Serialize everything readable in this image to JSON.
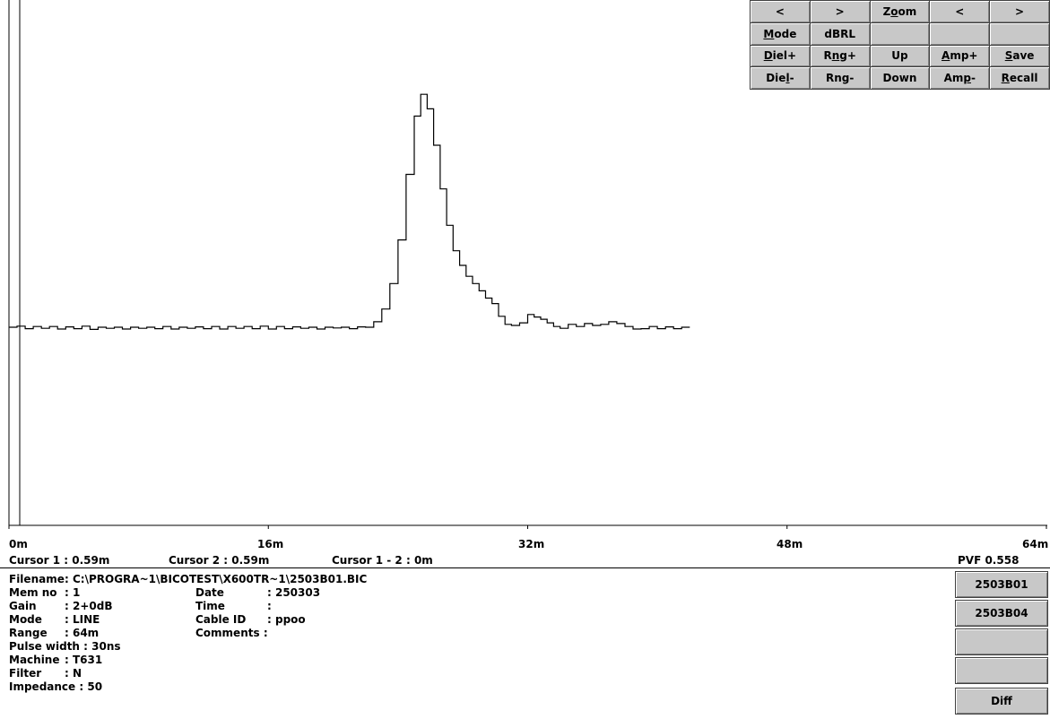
{
  "toolbar": {
    "rows": [
      [
        {
          "label": "<",
          "name": "scroll-left-button"
        },
        {
          "label": ">",
          "name": "scroll-right-button"
        },
        {
          "label": "Zoom",
          "name": "zoom-button"
        },
        {
          "label": "<",
          "name": "cursor-left-button"
        },
        {
          "label": ">",
          "name": "cursor-right-button"
        }
      ],
      [
        {
          "label": "Mode",
          "name": "mode-button"
        },
        {
          "label": "dBRL",
          "name": "dbrl-button"
        },
        {
          "label": "",
          "name": "blank-button-1"
        },
        {
          "label": "",
          "name": "blank-button-2"
        },
        {
          "label": "",
          "name": "blank-button-3"
        }
      ],
      [
        {
          "label": "Diel+",
          "name": "diel-plus-button"
        },
        {
          "label": "Rng+",
          "name": "range-plus-button"
        },
        {
          "label": "Up",
          "name": "up-button"
        },
        {
          "label": "Amp+",
          "name": "amp-plus-button"
        },
        {
          "label": "Save",
          "name": "save-button"
        }
      ],
      [
        {
          "label": "Diel-",
          "name": "diel-minus-button"
        },
        {
          "label": "Rng-",
          "name": "range-minus-button"
        },
        {
          "label": "Down",
          "name": "down-button"
        },
        {
          "label": "Amp-",
          "name": "amp-minus-button"
        },
        {
          "label": "Recall",
          "name": "recall-button"
        }
      ]
    ]
  },
  "chart_data": {
    "type": "line",
    "xlim": [
      0,
      64
    ],
    "x_tick_labels": [
      "0m",
      "16m",
      "32m",
      "48m",
      "64m"
    ],
    "x_ticks": [
      0,
      16,
      32,
      48,
      64
    ],
    "series": [
      {
        "points": [
          [
            0.0,
            0.0
          ],
          [
            0.5,
            0.3
          ],
          [
            1.0,
            -0.4
          ],
          [
            1.5,
            0.2
          ],
          [
            2.0,
            -0.3
          ],
          [
            2.5,
            0.2
          ],
          [
            3.0,
            -0.5
          ],
          [
            3.5,
            0.1
          ],
          [
            4.0,
            -0.4
          ],
          [
            4.5,
            0.3
          ],
          [
            5.0,
            -0.6
          ],
          [
            5.5,
            0.0
          ],
          [
            6.0,
            -0.3
          ],
          [
            6.5,
            0.0
          ],
          [
            7.0,
            -0.5
          ],
          [
            7.5,
            0.0
          ],
          [
            8.0,
            -0.3
          ],
          [
            8.5,
            0.0
          ],
          [
            9.0,
            -0.4
          ],
          [
            9.5,
            0.2
          ],
          [
            10.0,
            -0.5
          ],
          [
            10.5,
            0.0
          ],
          [
            11.0,
            -0.3
          ],
          [
            11.5,
            0.1
          ],
          [
            12.0,
            -0.4
          ],
          [
            12.5,
            0.2
          ],
          [
            13.0,
            -0.5
          ],
          [
            13.5,
            0.2
          ],
          [
            14.0,
            -0.3
          ],
          [
            14.5,
            0.2
          ],
          [
            15.0,
            -0.4
          ],
          [
            15.5,
            0.3
          ],
          [
            16.0,
            -0.5
          ],
          [
            16.5,
            0.2
          ],
          [
            17.0,
            -0.4
          ],
          [
            17.5,
            0.1
          ],
          [
            18.0,
            -0.3
          ],
          [
            18.5,
            0.0
          ],
          [
            19.0,
            -0.5
          ],
          [
            19.5,
            0.0
          ],
          [
            20.0,
            -0.2
          ],
          [
            20.5,
            0.0
          ],
          [
            21.0,
            -0.4
          ],
          [
            21.5,
            0.1
          ],
          [
            22.0,
            0.0
          ],
          [
            22.5,
            1.5
          ],
          [
            23.0,
            5
          ],
          [
            23.5,
            12
          ],
          [
            24.0,
            24
          ],
          [
            24.5,
            42
          ],
          [
            25.0,
            58
          ],
          [
            25.4,
            64
          ],
          [
            25.8,
            60
          ],
          [
            26.2,
            50
          ],
          [
            26.6,
            38
          ],
          [
            27.0,
            28
          ],
          [
            27.4,
            21
          ],
          [
            27.8,
            17
          ],
          [
            28.2,
            14
          ],
          [
            28.6,
            12
          ],
          [
            29.0,
            10
          ],
          [
            29.4,
            8
          ],
          [
            29.8,
            6.5
          ],
          [
            30.2,
            3
          ],
          [
            30.6,
            0.8
          ],
          [
            31.0,
            0.5
          ],
          [
            31.5,
            1.2
          ],
          [
            32.0,
            3.5
          ],
          [
            32.4,
            2.8
          ],
          [
            32.8,
            2.2
          ],
          [
            33.2,
            1.2
          ],
          [
            33.6,
            0.2
          ],
          [
            34.0,
            -0.3
          ],
          [
            34.5,
            0.8
          ],
          [
            35.0,
            0.2
          ],
          [
            35.5,
            1.0
          ],
          [
            36.0,
            0.5
          ],
          [
            36.5,
            0.8
          ],
          [
            37.0,
            1.5
          ],
          [
            37.5,
            1.0
          ],
          [
            38.0,
            0.2
          ],
          [
            38.5,
            -0.5
          ],
          [
            39.0,
            -0.4
          ],
          [
            39.5,
            0.2
          ],
          [
            40.0,
            -0.4
          ],
          [
            40.5,
            0.1
          ],
          [
            41.0,
            -0.4
          ],
          [
            41.5,
            0.0
          ],
          [
            42.0,
            0.0
          ]
        ]
      }
    ]
  },
  "cursors": {
    "cursor1": "Cursor 1 : 0.59m",
    "cursor2": "Cursor 2 : 0.59m",
    "diff": "Cursor 1 - 2 : 0m",
    "pvf": "PVF 0.558"
  },
  "info": {
    "filename_label": "Filename",
    "filename": ": C:\\PROGRA~1\\BICOTEST\\X600TR~1\\2503B01.BIC",
    "memno_label": "Mem no",
    "memno": ": 1",
    "gain_label": "Gain",
    "gain": ": 2+0dB",
    "mode_label": "Mode",
    "mode": ": LINE",
    "range_label": "Range",
    "range": ": 64m",
    "pulse_label": "Pulse width",
    "pulse": ": 30ns",
    "machine_label": "Machine",
    "machine": ": T631",
    "filter_label": "Filter",
    "filter": ": N",
    "impedance_label": "Impedance",
    "impedance": ": 50",
    "date_label": "Date",
    "date": ": 250303",
    "time_label": "Time",
    "time": ":",
    "cable_label": "Cable ID",
    "cable": ": ppoo",
    "comments_label": "Comments",
    "comments": ":"
  },
  "memory_buttons": [
    "2503B01",
    "2503B04",
    "",
    "",
    "Diff"
  ]
}
